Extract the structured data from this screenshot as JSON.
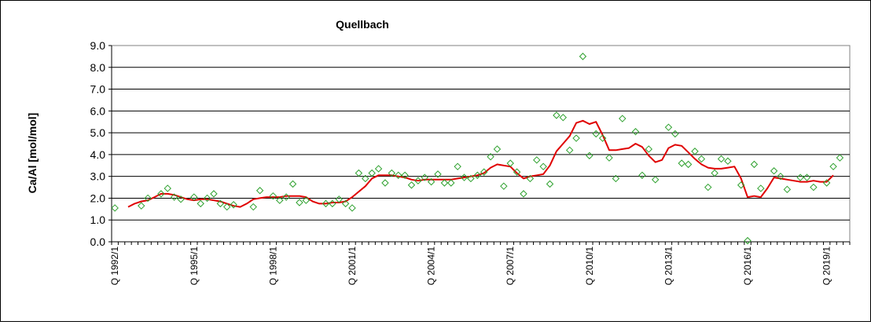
{
  "chart_data": {
    "type": "line",
    "title": "Quellbach",
    "ylabel": "Ca/Al [mol/mol]",
    "xlabel": "",
    "ylim": [
      0,
      9
    ],
    "yticks": [
      "0.0",
      "1.0",
      "2.0",
      "3.0",
      "4.0",
      "5.0",
      "6.0",
      "7.0",
      "8.0",
      "9.0"
    ],
    "x_start_quarter": "1992/1",
    "n_quarters": 112,
    "xtick_labels": [
      {
        "q": 0,
        "label": "Q 1992/1"
      },
      {
        "q": 12,
        "label": "Q 1995/1"
      },
      {
        "q": 24,
        "label": "Q 1998/1"
      },
      {
        "q": 36,
        "label": "Q 2001/1"
      },
      {
        "q": 48,
        "label": "Q 2004/1"
      },
      {
        "q": 60,
        "label": "Q 2007/1"
      },
      {
        "q": 72,
        "label": "Q 2010/1"
      },
      {
        "q": 84,
        "label": "Q 2013/1"
      },
      {
        "q": 96,
        "label": "Q 2016/1"
      },
      {
        "q": 108,
        "label": "Q 2019/1"
      }
    ],
    "grid": true,
    "legend": false,
    "series": [
      {
        "style": "scatter",
        "marker": "diamond",
        "color": "#2ca02c",
        "points": [
          [
            0,
            1.55
          ],
          [
            4,
            1.65
          ],
          [
            5,
            2.0
          ],
          [
            7,
            2.2
          ],
          [
            8,
            2.45
          ],
          [
            9,
            2.05
          ],
          [
            10,
            1.95
          ],
          [
            12,
            2.05
          ],
          [
            13,
            1.75
          ],
          [
            14,
            2.0
          ],
          [
            15,
            2.2
          ],
          [
            16,
            1.75
          ],
          [
            17,
            1.6
          ],
          [
            18,
            1.7
          ],
          [
            21,
            1.6
          ],
          [
            22,
            2.35
          ],
          [
            24,
            2.1
          ],
          [
            25,
            1.9
          ],
          [
            26,
            2.05
          ],
          [
            27,
            2.65
          ],
          [
            28,
            1.8
          ],
          [
            29,
            1.9
          ],
          [
            32,
            1.75
          ],
          [
            33,
            1.75
          ],
          [
            34,
            1.95
          ],
          [
            35,
            1.75
          ],
          [
            36,
            1.55
          ],
          [
            37,
            3.15
          ],
          [
            38,
            2.9
          ],
          [
            39,
            3.15
          ],
          [
            40,
            3.35
          ],
          [
            41,
            2.7
          ],
          [
            42,
            3.15
          ],
          [
            43,
            3.05
          ],
          [
            44,
            3.05
          ],
          [
            45,
            2.6
          ],
          [
            46,
            2.8
          ],
          [
            47,
            2.95
          ],
          [
            48,
            2.75
          ],
          [
            49,
            3.1
          ],
          [
            50,
            2.7
          ],
          [
            51,
            2.7
          ],
          [
            52,
            3.45
          ],
          [
            53,
            2.95
          ],
          [
            54,
            2.9
          ],
          [
            55,
            3.05
          ],
          [
            56,
            3.2
          ],
          [
            57,
            3.9
          ],
          [
            58,
            4.25
          ],
          [
            59,
            2.55
          ],
          [
            60,
            3.6
          ],
          [
            61,
            3.2
          ],
          [
            62,
            2.2
          ],
          [
            63,
            2.9
          ],
          [
            64,
            3.75
          ],
          [
            65,
            3.45
          ],
          [
            66,
            2.65
          ],
          [
            67,
            5.8
          ],
          [
            68,
            5.7
          ],
          [
            69,
            4.2
          ],
          [
            70,
            4.75
          ],
          [
            71,
            8.5
          ],
          [
            72,
            3.95
          ],
          [
            73,
            4.95
          ],
          [
            74,
            4.75
          ],
          [
            75,
            3.85
          ],
          [
            76,
            2.9
          ],
          [
            77,
            5.65
          ],
          [
            79,
            5.05
          ],
          [
            80,
            3.05
          ],
          [
            81,
            4.25
          ],
          [
            82,
            2.85
          ],
          [
            84,
            5.25
          ],
          [
            85,
            4.95
          ],
          [
            86,
            3.6
          ],
          [
            87,
            3.55
          ],
          [
            88,
            4.15
          ],
          [
            89,
            3.8
          ],
          [
            90,
            2.5
          ],
          [
            91,
            3.15
          ],
          [
            92,
            3.8
          ],
          [
            93,
            3.7
          ],
          [
            95,
            2.6
          ],
          [
            96,
            0.05
          ],
          [
            97,
            3.55
          ],
          [
            98,
            2.45
          ],
          [
            100,
            3.25
          ],
          [
            101,
            3.0
          ],
          [
            102,
            2.4
          ],
          [
            104,
            2.95
          ],
          [
            105,
            2.95
          ],
          [
            106,
            2.5
          ],
          [
            108,
            2.7
          ],
          [
            109,
            3.45
          ],
          [
            110,
            3.85
          ]
        ]
      },
      {
        "style": "line",
        "color": "#e00000",
        "points": [
          [
            2,
            1.6
          ],
          [
            3,
            1.75
          ],
          [
            4,
            1.85
          ],
          [
            5,
            1.9
          ],
          [
            6,
            2.05
          ],
          [
            7,
            2.2
          ],
          [
            8,
            2.2
          ],
          [
            9,
            2.15
          ],
          [
            10,
            2.05
          ],
          [
            11,
            1.95
          ],
          [
            12,
            1.9
          ],
          [
            13,
            1.95
          ],
          [
            14,
            1.95
          ],
          [
            15,
            1.9
          ],
          [
            16,
            1.85
          ],
          [
            17,
            1.75
          ],
          [
            18,
            1.65
          ],
          [
            19,
            1.6
          ],
          [
            20,
            1.75
          ],
          [
            21,
            1.95
          ],
          [
            22,
            2.0
          ],
          [
            23,
            2.05
          ],
          [
            24,
            2.05
          ],
          [
            25,
            2.05
          ],
          [
            26,
            2.1
          ],
          [
            27,
            2.1
          ],
          [
            28,
            2.1
          ],
          [
            29,
            2.05
          ],
          [
            30,
            1.85
          ],
          [
            31,
            1.75
          ],
          [
            32,
            1.75
          ],
          [
            33,
            1.8
          ],
          [
            34,
            1.8
          ],
          [
            35,
            1.85
          ],
          [
            36,
            2.05
          ],
          [
            37,
            2.3
          ],
          [
            38,
            2.55
          ],
          [
            39,
            2.9
          ],
          [
            40,
            3.05
          ],
          [
            41,
            3.05
          ],
          [
            42,
            3.05
          ],
          [
            43,
            3.0
          ],
          [
            44,
            2.95
          ],
          [
            45,
            2.85
          ],
          [
            46,
            2.8
          ],
          [
            47,
            2.85
          ],
          [
            48,
            2.85
          ],
          [
            49,
            2.85
          ],
          [
            50,
            2.85
          ],
          [
            51,
            2.85
          ],
          [
            52,
            2.9
          ],
          [
            53,
            2.95
          ],
          [
            54,
            3.0
          ],
          [
            55,
            3.05
          ],
          [
            56,
            3.15
          ],
          [
            57,
            3.4
          ],
          [
            58,
            3.55
          ],
          [
            59,
            3.5
          ],
          [
            60,
            3.45
          ],
          [
            61,
            3.15
          ],
          [
            62,
            2.9
          ],
          [
            63,
            3.0
          ],
          [
            64,
            3.05
          ],
          [
            65,
            3.1
          ],
          [
            66,
            3.5
          ],
          [
            67,
            4.15
          ],
          [
            68,
            4.5
          ],
          [
            69,
            4.85
          ],
          [
            70,
            5.45
          ],
          [
            71,
            5.55
          ],
          [
            72,
            5.4
          ],
          [
            73,
            5.5
          ],
          [
            74,
            4.9
          ],
          [
            75,
            4.2
          ],
          [
            76,
            4.2
          ],
          [
            77,
            4.25
          ],
          [
            78,
            4.3
          ],
          [
            79,
            4.5
          ],
          [
            80,
            4.35
          ],
          [
            81,
            3.95
          ],
          [
            82,
            3.65
          ],
          [
            83,
            3.75
          ],
          [
            84,
            4.3
          ],
          [
            85,
            4.45
          ],
          [
            86,
            4.4
          ],
          [
            87,
            4.1
          ],
          [
            88,
            3.8
          ],
          [
            89,
            3.55
          ],
          [
            90,
            3.4
          ],
          [
            91,
            3.35
          ],
          [
            92,
            3.35
          ],
          [
            93,
            3.4
          ],
          [
            94,
            3.45
          ],
          [
            95,
            2.9
          ],
          [
            96,
            2.05
          ],
          [
            97,
            2.1
          ],
          [
            98,
            2.05
          ],
          [
            99,
            2.45
          ],
          [
            100,
            2.95
          ],
          [
            101,
            2.9
          ],
          [
            102,
            2.85
          ],
          [
            103,
            2.8
          ],
          [
            104,
            2.75
          ],
          [
            105,
            2.75
          ],
          [
            106,
            2.8
          ],
          [
            107,
            2.75
          ],
          [
            108,
            2.75
          ],
          [
            109,
            3.05
          ]
        ]
      }
    ]
  }
}
